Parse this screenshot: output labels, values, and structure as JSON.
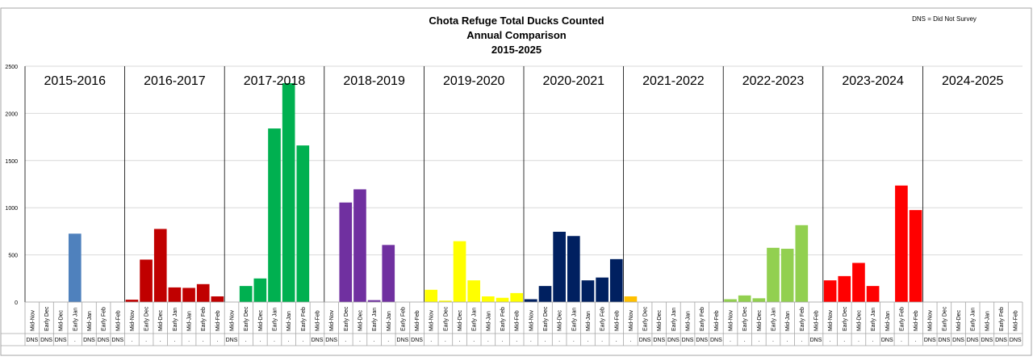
{
  "chart_data": {
    "type": "bar",
    "title_lines": [
      "Chota Refuge Total Ducks Counted",
      "Annual Comparison",
      "2015-2025"
    ],
    "note": "DNS = Did Not Survey",
    "ylim": [
      0,
      2500
    ],
    "yticks": [
      0,
      500,
      1000,
      1500,
      2000,
      2500
    ],
    "grid": true,
    "seasons": [
      {
        "name": "2015-2016",
        "color": "#4f81bd",
        "surveys": [
          "Mid-Nov",
          "Early Dec",
          "Mid-Dec",
          "Early Jan",
          "Mid-Jan",
          "Early Feb",
          "Mid-Feb"
        ],
        "values": [
          null,
          null,
          null,
          725,
          null,
          null,
          null
        ],
        "status": [
          "DNS",
          "DNS",
          "DNS",
          ".",
          "DNS",
          "DNS",
          "DNS"
        ]
      },
      {
        "name": "2016-2017",
        "color": "#c00000",
        "surveys": [
          "Mid-Nov",
          "Early Dec",
          "Mid-Dec",
          "Early Jan",
          "Mid-Jan",
          "Early Feb",
          "Mid-Feb"
        ],
        "values": [
          25,
          450,
          775,
          155,
          150,
          190,
          60
        ],
        "status": [
          ".",
          ".",
          ".",
          ".",
          ".",
          ".",
          "."
        ]
      },
      {
        "name": "2017-2018",
        "color": "#00b050",
        "surveys": [
          "Mid-Nov",
          "Early Dec",
          "Mid-Dec",
          "Early Jan",
          "Mid-Jan",
          "Early Feb",
          "Mid-Feb"
        ],
        "values": [
          null,
          170,
          250,
          1840,
          2320,
          1660,
          null
        ],
        "status": [
          "DNS",
          ".",
          ".",
          ".",
          ".",
          ".",
          "DNS"
        ]
      },
      {
        "name": "2018-2019",
        "color": "#7030a0",
        "surveys": [
          "Mid-Nov",
          "Early Dec",
          "Mid-Dec",
          "Early Jan",
          "Mid-Jan",
          "Early Feb",
          "Mid-Feb"
        ],
        "values": [
          null,
          1055,
          1195,
          20,
          605,
          null,
          null
        ],
        "status": [
          "DNS",
          ".",
          ".",
          ".",
          ".",
          "DNS",
          "DNS"
        ]
      },
      {
        "name": "2019-2020",
        "color": "#ffff00",
        "surveys": [
          "Mid-Nov",
          "Early Dec",
          "Mid-Dec",
          "Early Jan",
          "Mid-Jan",
          "Early Feb",
          "Mid-Feb"
        ],
        "values": [
          130,
          15,
          645,
          230,
          60,
          45,
          95
        ],
        "status": [
          ".",
          ".",
          ".",
          ".",
          ".",
          ".",
          "."
        ]
      },
      {
        "name": "2020-2021",
        "color": "#002060",
        "surveys": [
          "Mid-Nov",
          "Early Dec",
          "Mid-Dec",
          "Early Jan",
          "Mid-Jan",
          "Early Feb",
          "Mid-Feb"
        ],
        "values": [
          30,
          170,
          745,
          700,
          230,
          260,
          455
        ],
        "status": [
          ".",
          ".",
          ".",
          ".",
          ".",
          ".",
          "."
        ]
      },
      {
        "name": "2021-2022",
        "color": "#ffc000",
        "surveys": [
          "Mid-Nov",
          "Early Dec",
          "Mid-Dec",
          "Early Jan",
          "Mid-Jan",
          "Early Feb",
          "Mid-Feb"
        ],
        "values": [
          60,
          null,
          null,
          null,
          null,
          null,
          null
        ],
        "status": [
          ".",
          "DNS",
          "DNS",
          "DNS",
          "DNS",
          "DNS",
          "DNS"
        ]
      },
      {
        "name": "2022-2023",
        "color": "#92d050",
        "surveys": [
          "Mid-Nov",
          "Early Dec",
          "Mid-Dec",
          "Early Jan",
          "Mid-Jan",
          "Early Feb",
          "Mid-Feb"
        ],
        "values": [
          30,
          70,
          40,
          575,
          565,
          815,
          null
        ],
        "status": [
          ".",
          ".",
          ".",
          ".",
          ".",
          ".",
          "DNS"
        ]
      },
      {
        "name": "2023-2024",
        "color": "#ff0000",
        "surveys": [
          "Mid-Nov",
          "Early Dec",
          "Mid-Dec",
          "Early Jan",
          "Mid-Jan",
          "Early Feb",
          "Mid-Feb"
        ],
        "values": [
          230,
          275,
          415,
          170,
          null,
          1235,
          975
        ],
        "status": [
          ".",
          ".",
          ".",
          ".",
          "DNS",
          ".",
          "."
        ]
      },
      {
        "name": "2024-2025",
        "color": "#bfbfbf",
        "surveys": [
          "Mid-Nov",
          "Early Dec",
          "Mid-Dec",
          "Early Jan",
          "Mid-Jan",
          "Early Feb",
          "Mid-Feb"
        ],
        "values": [
          null,
          null,
          null,
          null,
          null,
          null,
          null
        ],
        "status": [
          "DNS",
          "DNS",
          "DNS",
          "DNS",
          "DNS",
          "DNS",
          "DNS"
        ]
      }
    ]
  }
}
